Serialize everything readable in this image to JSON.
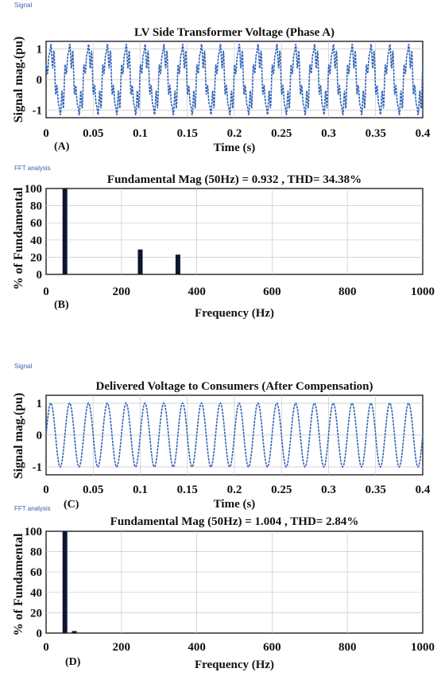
{
  "figure": {
    "panels": [
      {
        "id": "A",
        "label": "(A)",
        "tag": "Signal"
      },
      {
        "id": "B",
        "label": "(B)",
        "tag": "FFT analysis"
      },
      {
        "id": "C",
        "label": "(C)",
        "tag": "Signal"
      },
      {
        "id": "D",
        "label": "(D)",
        "tag": "FFT analysis"
      }
    ]
  },
  "chart_data": [
    {
      "type": "line",
      "title": "LV Side Transformer Voltage (Phase A)",
      "xlabel": "Time (s)",
      "ylabel": "Signal mag.(pu)",
      "xlim": [
        0,
        0.4
      ],
      "ylim": [
        -1.25,
        1.25
      ],
      "xticks": [
        "0",
        "0.05",
        "0.1",
        "0.15",
        "0.2",
        "0.25",
        "0.3",
        "0.35",
        "0.4"
      ],
      "yticks": [
        "-1",
        "0",
        "1"
      ],
      "grid": true,
      "signal": {
        "fundamental_hz": 50,
        "components": [
          {
            "freq_hz": 50,
            "amplitude": 0.932
          },
          {
            "freq_hz": 250,
            "amplitude": 0.27
          },
          {
            "freq_hz": 350,
            "amplitude": 0.22
          }
        ]
      },
      "color": "#2f62b8"
    },
    {
      "type": "bar",
      "title": "Fundamental Mag (50Hz) = 0.932 , THD= 34.38%",
      "xlabel": "Frequency (Hz)",
      "ylabel": "% of Fundamental",
      "xlim": [
        0,
        1000
      ],
      "ylim": [
        0,
        100
      ],
      "xticks": [
        "0",
        "200",
        "400",
        "600",
        "800",
        "1000"
      ],
      "yticks": [
        "0",
        "20",
        "40",
        "60",
        "80",
        "100"
      ],
      "grid": true,
      "x": [
        50,
        250,
        350
      ],
      "values": [
        100,
        29,
        23
      ],
      "color": "#0d1530"
    },
    {
      "type": "line",
      "title": "Delivered Voltage to Consumers (After Compensation)",
      "xlabel": "Time (s)",
      "ylabel": "Signal mag.(pu)",
      "xlim": [
        0,
        0.4
      ],
      "ylim": [
        -1.25,
        1.25
      ],
      "xticks": [
        "0",
        "0.05",
        "0.1",
        "0.15",
        "0.2",
        "0.25",
        "0.3",
        "0.35",
        "0.4"
      ],
      "yticks": [
        "-1",
        "0",
        "1"
      ],
      "grid": true,
      "signal": {
        "fundamental_hz": 50,
        "components": [
          {
            "freq_hz": 50,
            "amplitude": 1.004
          }
        ]
      },
      "color": "#2f62b8"
    },
    {
      "type": "bar",
      "title": "Fundamental Mag (50Hz) = 1.004 , THD= 2.84%",
      "xlabel": "Frequency (Hz)",
      "ylabel": "% of Fundamental",
      "xlim": [
        0,
        1000
      ],
      "ylim": [
        0,
        100
      ],
      "xticks": [
        "0",
        "200",
        "400",
        "600",
        "800",
        "1000"
      ],
      "yticks": [
        "0",
        "20",
        "40",
        "60",
        "80",
        "100"
      ],
      "grid": true,
      "x": [
        50,
        75
      ],
      "values": [
        100,
        2
      ],
      "color": "#0d1530"
    }
  ]
}
